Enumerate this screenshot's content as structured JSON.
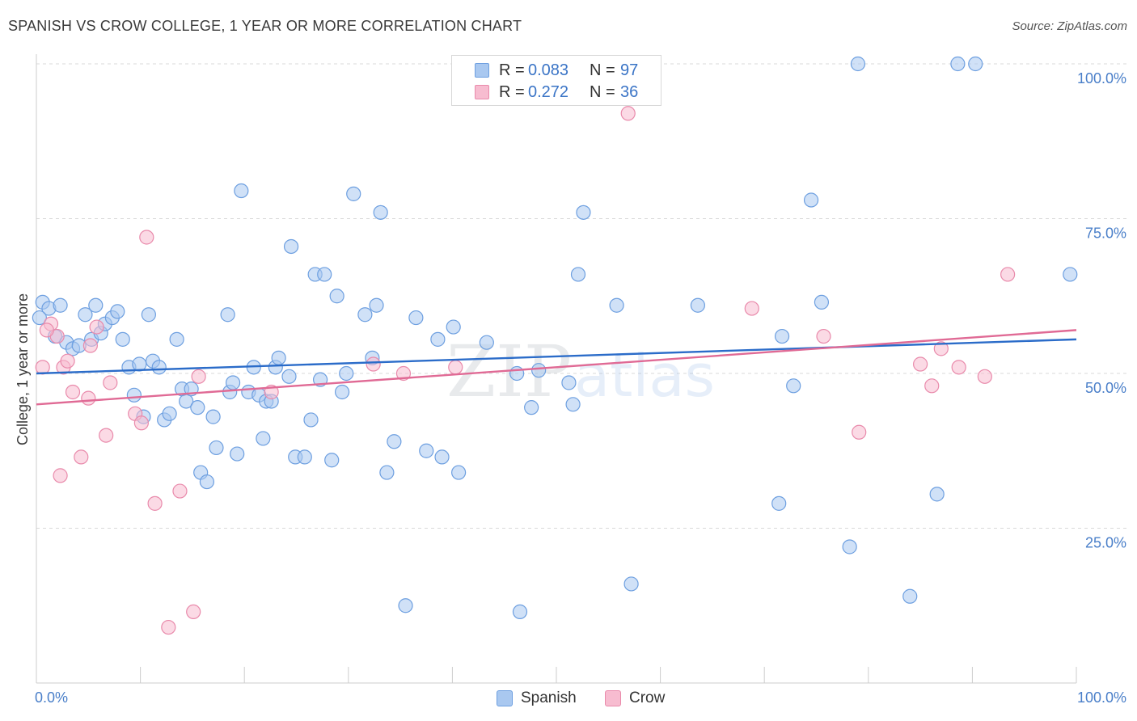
{
  "title": "SPANISH VS CROW COLLEGE, 1 YEAR OR MORE CORRELATION CHART",
  "source": "Source: ZipAtlas.com",
  "watermark": {
    "zip": "ZIP",
    "atlas": "atlas"
  },
  "legend": {
    "rows": [
      {
        "r_label": "R =",
        "r_value": "0.083",
        "n_label": "N =",
        "n_value": "97",
        "color": "#a9c8f0",
        "border": "#6d9fe0"
      },
      {
        "r_label": "R =",
        "r_value": "0.272",
        "n_label": "N =",
        "n_value": "36",
        "color": "#f7bcd0",
        "border": "#e98aab"
      }
    ]
  },
  "bottom_legend": [
    {
      "label": "Spanish",
      "color": "#a9c8f0",
      "border": "#6d9fe0"
    },
    {
      "label": "Crow",
      "color": "#f7bcd0",
      "border": "#e98aab"
    }
  ],
  "chart_data": {
    "type": "scatter",
    "title": "SPANISH VS CROW COLLEGE, 1 YEAR OR MORE CORRELATION CHART",
    "xlabel": "",
    "ylabel": "College, 1 year or more",
    "xlim": [
      0,
      100
    ],
    "ylim": [
      0,
      100
    ],
    "x_tick_labels": [
      "0.0%",
      "100.0%"
    ],
    "y_tick_labels": [
      "100.0%",
      "75.0%",
      "50.0%",
      "25.0%"
    ],
    "y_ticks": [
      100,
      75,
      50,
      25
    ],
    "grid": true,
    "legend_position": "top-center",
    "series": [
      {
        "name": "Spanish",
        "color": "#a9c8f0",
        "stroke": "#6d9fe0",
        "line_color": "#2b6cc9",
        "trend": [
          [
            0,
            50.0
          ],
          [
            100,
            55.5
          ]
        ],
        "points": [
          [
            0.6,
            61.5
          ],
          [
            1.2,
            60.5
          ],
          [
            2.3,
            61.0
          ],
          [
            1.8,
            56.0
          ],
          [
            2.9,
            55.0
          ],
          [
            3.5,
            54.0
          ],
          [
            4.1,
            54.5
          ],
          [
            4.7,
            59.5
          ],
          [
            5.3,
            55.5
          ],
          [
            5.7,
            61.0
          ],
          [
            6.2,
            56.5
          ],
          [
            6.6,
            58.0
          ],
          [
            7.3,
            59.0
          ],
          [
            7.8,
            60.0
          ],
          [
            8.3,
            55.5
          ],
          [
            8.9,
            51.0
          ],
          [
            9.4,
            46.5
          ],
          [
            9.9,
            51.5
          ],
          [
            10.3,
            43.0
          ],
          [
            10.8,
            59.5
          ],
          [
            11.2,
            52.0
          ],
          [
            11.8,
            51.0
          ],
          [
            12.3,
            42.5
          ],
          [
            12.8,
            43.5
          ],
          [
            13.5,
            55.5
          ],
          [
            14.0,
            47.5
          ],
          [
            14.4,
            45.5
          ],
          [
            14.9,
            47.5
          ],
          [
            15.5,
            44.5
          ],
          [
            15.8,
            34.0
          ],
          [
            16.4,
            32.5
          ],
          [
            17.0,
            43.0
          ],
          [
            17.3,
            38.0
          ],
          [
            18.4,
            59.5
          ],
          [
            18.6,
            47.0
          ],
          [
            18.9,
            48.5
          ],
          [
            19.3,
            37.0
          ],
          [
            19.7,
            79.5
          ],
          [
            20.4,
            47.0
          ],
          [
            20.9,
            51.0
          ],
          [
            21.4,
            46.5
          ],
          [
            21.8,
            39.5
          ],
          [
            22.1,
            45.5
          ],
          [
            22.6,
            45.5
          ],
          [
            23.0,
            51.0
          ],
          [
            23.3,
            52.5
          ],
          [
            24.3,
            49.5
          ],
          [
            24.5,
            70.5
          ],
          [
            24.9,
            36.5
          ],
          [
            25.8,
            36.5
          ],
          [
            26.4,
            42.5
          ],
          [
            26.8,
            66.0
          ],
          [
            27.3,
            49.0
          ],
          [
            27.7,
            66.0
          ],
          [
            28.4,
            36.0
          ],
          [
            28.9,
            62.5
          ],
          [
            29.4,
            47.0
          ],
          [
            29.8,
            50.0
          ],
          [
            30.5,
            79.0
          ],
          [
            31.6,
            59.5
          ],
          [
            32.3,
            52.5
          ],
          [
            32.7,
            61.0
          ],
          [
            33.1,
            76.0
          ],
          [
            33.7,
            34.0
          ],
          [
            34.4,
            39.0
          ],
          [
            35.5,
            12.5
          ],
          [
            36.5,
            59.0
          ],
          [
            37.5,
            37.5
          ],
          [
            38.6,
            55.5
          ],
          [
            39.0,
            36.5
          ],
          [
            40.1,
            57.5
          ],
          [
            40.6,
            34.0
          ],
          [
            43.3,
            55.0
          ],
          [
            46.2,
            50.0
          ],
          [
            46.5,
            11.5
          ],
          [
            47.6,
            44.5
          ],
          [
            48.3,
            50.5
          ],
          [
            51.2,
            48.5
          ],
          [
            51.6,
            45.0
          ],
          [
            52.1,
            66.0
          ],
          [
            52.6,
            76.0
          ],
          [
            55.8,
            61.0
          ],
          [
            57.2,
            16.0
          ],
          [
            63.6,
            61.0
          ],
          [
            71.4,
            29.0
          ],
          [
            71.7,
            56.0
          ],
          [
            72.8,
            48.0
          ],
          [
            74.5,
            78.0
          ],
          [
            75.5,
            61.5
          ],
          [
            78.2,
            22.0
          ],
          [
            79.0,
            100.0
          ],
          [
            84.0,
            14.0
          ],
          [
            86.6,
            30.5
          ],
          [
            88.6,
            100.0
          ],
          [
            90.3,
            100.0
          ],
          [
            99.4,
            66.0
          ],
          [
            0.3,
            59.0
          ]
        ]
      },
      {
        "name": "Crow",
        "color": "#f7bcd0",
        "stroke": "#e98aab",
        "line_color": "#e06a95",
        "trend": [
          [
            0,
            45.0
          ],
          [
            100,
            57.0
          ]
        ],
        "points": [
          [
            0.6,
            51.0
          ],
          [
            1.4,
            58.0
          ],
          [
            2.0,
            56.0
          ],
          [
            2.3,
            33.5
          ],
          [
            2.6,
            51.0
          ],
          [
            3.0,
            52.0
          ],
          [
            3.5,
            47.0
          ],
          [
            4.3,
            36.5
          ],
          [
            5.0,
            46.0
          ],
          [
            5.2,
            54.5
          ],
          [
            5.8,
            57.5
          ],
          [
            6.7,
            40.0
          ],
          [
            7.1,
            48.5
          ],
          [
            9.5,
            43.5
          ],
          [
            10.1,
            42.0
          ],
          [
            10.6,
            72.0
          ],
          [
            11.4,
            29.0
          ],
          [
            12.7,
            9.0
          ],
          [
            13.8,
            31.0
          ],
          [
            15.1,
            11.5
          ],
          [
            15.6,
            49.5
          ],
          [
            22.6,
            47.0
          ],
          [
            32.4,
            51.5
          ],
          [
            35.3,
            50.0
          ],
          [
            40.3,
            51.0
          ],
          [
            56.9,
            92.0
          ],
          [
            68.8,
            60.5
          ],
          [
            75.7,
            56.0
          ],
          [
            79.1,
            40.5
          ],
          [
            85.0,
            51.5
          ],
          [
            86.1,
            48.0
          ],
          [
            87.0,
            54.0
          ],
          [
            88.7,
            51.0
          ],
          [
            91.2,
            49.5
          ],
          [
            93.4,
            66.0
          ],
          [
            1.0,
            57.0
          ]
        ]
      }
    ]
  }
}
